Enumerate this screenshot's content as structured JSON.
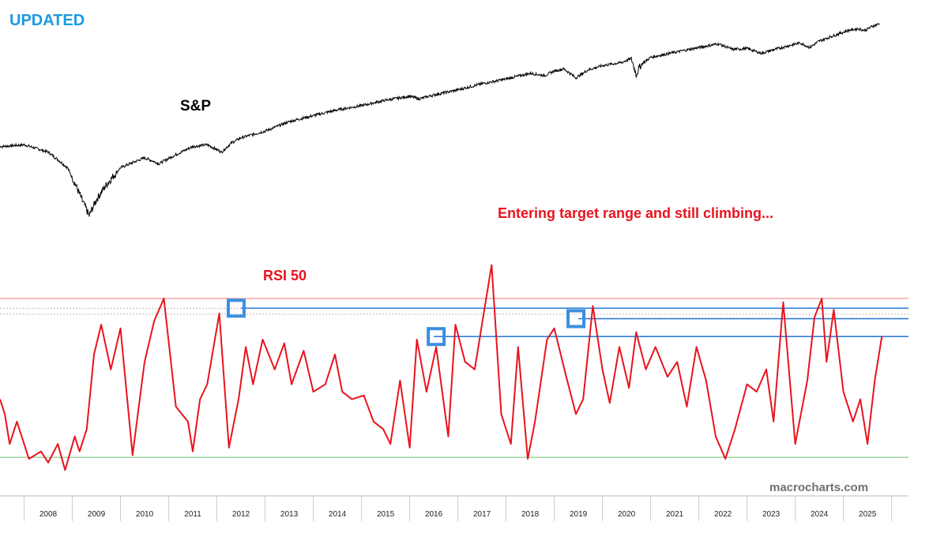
{
  "header": {
    "badge": "UPDATED",
    "badge_color": "#1a9be0"
  },
  "chart_data": [
    {
      "type": "line",
      "title": "S&P",
      "series": [
        {
          "name": "S&P",
          "color": "#000000",
          "x": [
            2007.0,
            2007.5,
            2008.0,
            2008.4,
            2008.7,
            2008.85,
            2009.0,
            2009.2,
            2009.5,
            2010.0,
            2010.3,
            2010.6,
            2011.0,
            2011.3,
            2011.6,
            2011.8,
            2012.0,
            2012.5,
            2013.0,
            2013.5,
            2014.0,
            2014.5,
            2015.0,
            2015.5,
            2015.7,
            2016.0,
            2016.5,
            2017.0,
            2017.5,
            2018.0,
            2018.3,
            2018.5,
            2018.7,
            2018.95,
            2019.2,
            2019.5,
            2019.9,
            2020.1,
            2020.2,
            2020.3,
            2020.5,
            2021.0,
            2021.5,
            2021.9,
            2022.2,
            2022.5,
            2022.8,
            2023.0,
            2023.3,
            2023.6,
            2023.8,
            2024.0,
            2024.3,
            2024.6,
            2024.8,
            2024.95,
            2025.1,
            2025.25
          ],
          "values": [
            0.86,
            0.87,
            0.83,
            0.75,
            0.61,
            0.55,
            0.61,
            0.67,
            0.75,
            0.8,
            0.77,
            0.81,
            0.86,
            0.87,
            0.83,
            0.88,
            0.91,
            0.95,
            1.01,
            1.05,
            1.09,
            1.12,
            1.16,
            1.19,
            1.17,
            1.2,
            1.24,
            1.29,
            1.33,
            1.38,
            1.36,
            1.4,
            1.42,
            1.34,
            1.41,
            1.45,
            1.48,
            1.52,
            1.37,
            1.46,
            1.53,
            1.58,
            1.63,
            1.67,
            1.61,
            1.62,
            1.57,
            1.6,
            1.64,
            1.68,
            1.63,
            1.7,
            1.76,
            1.82,
            1.84,
            1.82,
            1.87,
            1.9
          ]
        }
      ],
      "annotation": "Entering target range and still climbing...",
      "annotation_color": "#e8141e"
    },
    {
      "type": "line",
      "title": "RSI 50",
      "title_color": "#e8141e",
      "xlabel": "",
      "ylabel": "",
      "ylim": [
        38,
        65
      ],
      "tick_labels": [
        "2008",
        "2009",
        "2010",
        "2011",
        "2012",
        "2013",
        "2014",
        "2015",
        "2016",
        "2017",
        "2018",
        "2019",
        "2020",
        "2021",
        "2022",
        "2023",
        "2024",
        "2025"
      ],
      "series": [
        {
          "name": "RSI 50",
          "color": "#e8141e",
          "x": [
            2007.0,
            2007.1,
            2007.2,
            2007.35,
            2007.6,
            2007.85,
            2008.0,
            2008.2,
            2008.35,
            2008.55,
            2008.65,
            2008.8,
            2008.95,
            2009.1,
            2009.3,
            2009.5,
            2009.75,
            2009.9,
            2010.0,
            2010.2,
            2010.4,
            2010.65,
            2010.9,
            2011.0,
            2011.15,
            2011.3,
            2011.55,
            2011.75,
            2011.95,
            2012.1,
            2012.25,
            2012.45,
            2012.7,
            2012.9,
            2013.05,
            2013.3,
            2013.5,
            2013.75,
            2013.95,
            2014.1,
            2014.3,
            2014.55,
            2014.75,
            2014.95,
            2015.1,
            2015.3,
            2015.5,
            2015.65,
            2015.85,
            2016.05,
            2016.3,
            2016.45,
            2016.65,
            2016.85,
            2017.05,
            2017.2,
            2017.4,
            2017.6,
            2017.75,
            2017.95,
            2018.1,
            2018.35,
            2018.5,
            2018.75,
            2018.95,
            2019.1,
            2019.3,
            2019.5,
            2019.65,
            2019.85,
            2020.05,
            2020.2,
            2020.4,
            2020.6,
            2020.85,
            2021.05,
            2021.25,
            2021.45,
            2021.65,
            2021.85,
            2022.05,
            2022.25,
            2022.5,
            2022.7,
            2022.9,
            2023.05,
            2023.25,
            2023.5,
            2023.75,
            2023.9,
            2024.05,
            2024.15,
            2024.3,
            2024.5,
            2024.7,
            2024.85,
            2025.0,
            2025.15,
            2025.3
          ],
          "values": [
            48,
            46,
            42,
            45,
            40,
            41,
            39.5,
            42,
            38.5,
            43,
            41,
            44,
            54,
            58,
            52,
            57.5,
            40.5,
            48,
            53,
            58.5,
            61.5,
            47,
            45,
            41,
            48,
            50,
            59.5,
            41.5,
            48,
            55,
            50,
            56,
            52,
            55.5,
            50,
            54.5,
            49,
            50,
            54,
            49,
            48,
            48.5,
            45,
            44,
            42,
            50.5,
            41.5,
            56,
            49,
            55,
            43,
            58,
            53,
            52,
            60,
            66,
            46,
            42,
            55,
            40,
            45,
            56,
            57.5,
            51,
            46,
            48,
            60.5,
            52,
            47.5,
            55,
            49.5,
            57,
            52,
            55,
            51,
            53,
            47,
            55,
            50.5,
            43,
            40,
            44,
            50,
            49,
            52,
            45,
            61,
            42,
            50.5,
            59,
            61.5,
            53,
            60,
            49,
            45,
            48,
            42,
            50.5,
            56.5
          ]
        }
      ],
      "reference_lines": [
        {
          "label": "upper-band",
          "value": 61.5,
          "color": "#f2a6a6"
        },
        {
          "label": "dotted-1",
          "value": 60.2,
          "color": "#c8b8b8"
        },
        {
          "label": "dotted-2",
          "value": 59.4,
          "color": "#c8b8b8"
        },
        {
          "label": "lower-band",
          "value": 40.2,
          "color": "#9fd49f"
        }
      ],
      "resistance_lines": [
        {
          "from": 2012.0,
          "value": 60.2,
          "color": "#2f7fd6"
        },
        {
          "from": 2019.0,
          "value": 58.8,
          "color": "#2f7fd6"
        },
        {
          "from": 2016.0,
          "value": 56.4,
          "color": "#2f7fd6"
        }
      ],
      "markers": [
        {
          "x": 2011.9,
          "value": 60.2,
          "color": "#3a8fe0"
        },
        {
          "x": 2018.95,
          "value": 58.8,
          "color": "#3a8fe0"
        },
        {
          "x": 2016.05,
          "value": 56.4,
          "color": "#3a8fe0"
        }
      ]
    }
  ],
  "watermark": "macrocharts.com"
}
